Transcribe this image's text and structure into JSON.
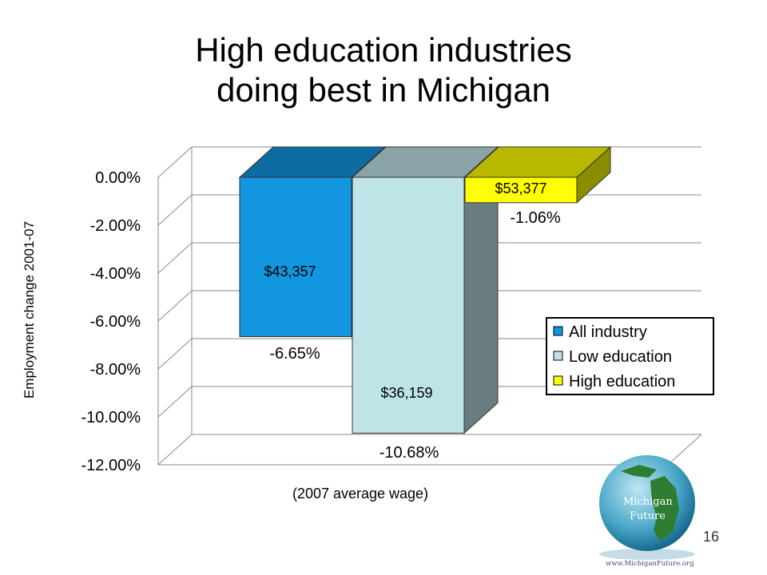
{
  "slide": {
    "title_line1": "High education industries",
    "title_line2": "doing best in Michigan",
    "slide_number": "16"
  },
  "logo": {
    "line1": "Michigan",
    "line2": "Future",
    "url": "www.MichiganFuture.org"
  },
  "colors": {
    "all_industry": "#1296e0",
    "low_education": "#bfe4e8",
    "high_education": "#ffff00"
  },
  "chart_data": {
    "type": "bar",
    "style": "3d",
    "title": "",
    "ylabel": "Employment change 2001-07",
    "xlabel": "(2007 average wage)",
    "ylim": [
      -12,
      0
    ],
    "yticks": [
      "0.00%",
      "-2.00%",
      "-4.00%",
      "-6.00%",
      "-8.00%",
      "-10.00%",
      "-12.00%"
    ],
    "grid": true,
    "legend_position": "right",
    "series": [
      {
        "name": "All industry",
        "value": -6.65,
        "value_label": "-6.65%",
        "wage_label": "$43,357"
      },
      {
        "name": "Low education",
        "value": -10.68,
        "value_label": "-10.68%",
        "wage_label": "$36,159"
      },
      {
        "name": "High education",
        "value": -1.06,
        "value_label": "-1.06%",
        "wage_label": "$53,377"
      }
    ]
  }
}
